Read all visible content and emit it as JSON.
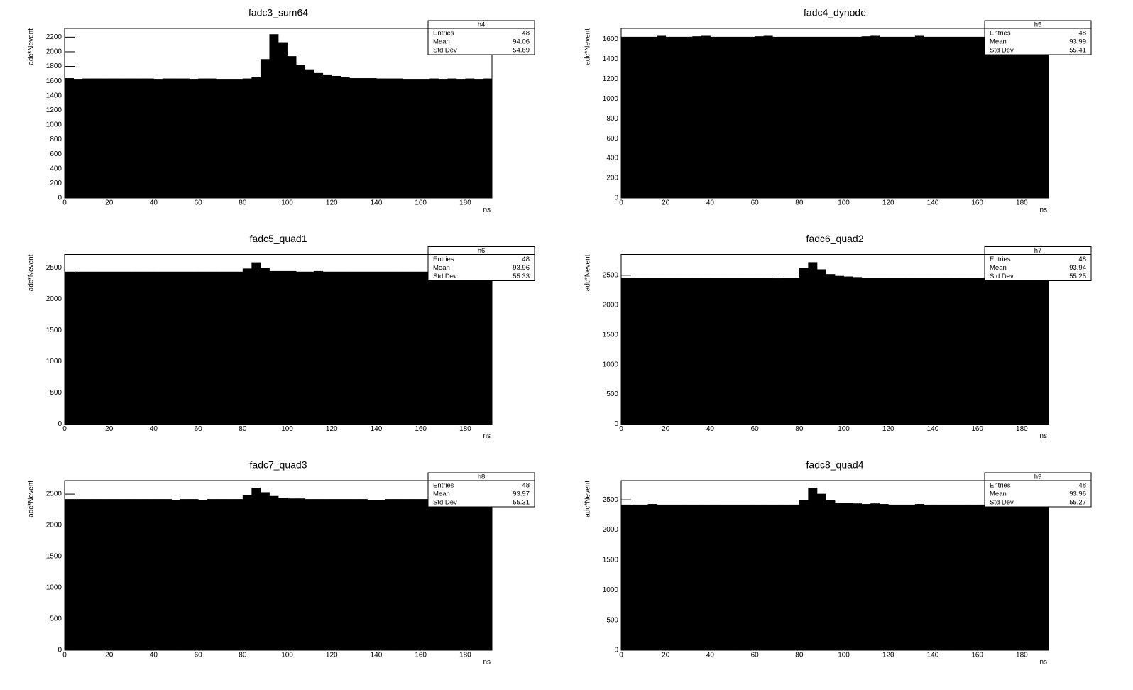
{
  "chart_data": [
    {
      "type": "histogram",
      "title": "fadc3_sum64",
      "xlabel": "ns",
      "ylabel": "adc*Nevent",
      "color": "#000000",
      "bins": [
        0,
        4,
        8,
        12,
        16,
        20,
        24,
        28,
        32,
        36,
        40,
        44,
        48,
        52,
        56,
        60,
        64,
        68,
        72,
        76,
        80,
        84,
        88,
        92,
        96,
        100,
        104,
        108,
        112,
        116,
        120,
        124,
        128,
        132,
        136,
        140,
        144,
        148,
        152,
        156,
        160,
        164,
        168,
        172,
        176,
        180,
        184,
        188,
        192
      ],
      "values": [
        1640,
        1630,
        1635,
        1635,
        1635,
        1635,
        1635,
        1635,
        1635,
        1635,
        1630,
        1635,
        1635,
        1635,
        1630,
        1635,
        1635,
        1630,
        1630,
        1630,
        1635,
        1650,
        1900,
        2240,
        2130,
        1940,
        1820,
        1760,
        1710,
        1690,
        1670,
        1650,
        1640,
        1640,
        1640,
        1635,
        1635,
        1635,
        1630,
        1630,
        1630,
        1635,
        1630,
        1635,
        1630,
        1635,
        1630,
        1635
      ],
      "xlim": [
        0,
        192
      ],
      "xticks": [
        0,
        20,
        40,
        60,
        80,
        100,
        120,
        140,
        160,
        180
      ],
      "ylim": [
        0,
        2320
      ],
      "yticks": [
        0,
        200,
        400,
        600,
        800,
        1000,
        1200,
        1400,
        1600,
        1800,
        2000,
        2200
      ],
      "stats": {
        "title": "h4",
        "rows": [
          {
            "label": "Entries",
            "value": 48
          },
          {
            "label": "Mean",
            "value": 94.06
          },
          {
            "label": "Std Dev",
            "value": 54.69
          }
        ]
      }
    },
    {
      "type": "histogram",
      "title": "fadc4_dynode",
      "xlabel": "ns",
      "ylabel": "adc*Nevent",
      "color": "#000000",
      "bins": [
        0,
        4,
        8,
        12,
        16,
        20,
        24,
        28,
        32,
        36,
        40,
        44,
        48,
        52,
        56,
        60,
        64,
        68,
        72,
        76,
        80,
        84,
        88,
        92,
        96,
        100,
        104,
        108,
        112,
        116,
        120,
        124,
        128,
        132,
        136,
        140,
        144,
        148,
        152,
        156,
        160,
        164,
        168,
        172,
        176,
        180,
        184,
        188,
        192
      ],
      "values": [
        1625,
        1625,
        1625,
        1625,
        1635,
        1625,
        1625,
        1625,
        1630,
        1635,
        1625,
        1625,
        1625,
        1625,
        1625,
        1630,
        1635,
        1625,
        1625,
        1625,
        1625,
        1625,
        1625,
        1625,
        1625,
        1625,
        1625,
        1630,
        1635,
        1625,
        1625,
        1625,
        1625,
        1635,
        1625,
        1625,
        1625,
        1625,
        1625,
        1625,
        1625,
        1625,
        1625,
        1625,
        1625,
        1625,
        1625,
        1625
      ],
      "xlim": [
        0,
        192
      ],
      "xticks": [
        0,
        20,
        40,
        60,
        80,
        100,
        120,
        140,
        160,
        180
      ],
      "ylim": [
        0,
        1710
      ],
      "yticks": [
        0,
        200,
        400,
        600,
        800,
        1000,
        1200,
        1400,
        1600
      ],
      "stats": {
        "title": "h5",
        "rows": [
          {
            "label": "Entries",
            "value": 48
          },
          {
            "label": "Mean",
            "value": 93.99
          },
          {
            "label": "Std Dev",
            "value": 55.41
          }
        ]
      }
    },
    {
      "type": "histogram",
      "title": "fadc5_quad1",
      "xlabel": "ns",
      "ylabel": "adc*Nevent",
      "color": "#000000",
      "bins": [
        0,
        4,
        8,
        12,
        16,
        20,
        24,
        28,
        32,
        36,
        40,
        44,
        48,
        52,
        56,
        60,
        64,
        68,
        72,
        76,
        80,
        84,
        88,
        92,
        96,
        100,
        104,
        108,
        112,
        116,
        120,
        124,
        128,
        132,
        136,
        140,
        144,
        148,
        152,
        156,
        160,
        164,
        168,
        172,
        176,
        180,
        184,
        188,
        192
      ],
      "values": [
        2440,
        2440,
        2440,
        2440,
        2440,
        2440,
        2440,
        2440,
        2440,
        2440,
        2440,
        2440,
        2440,
        2440,
        2440,
        2440,
        2440,
        2440,
        2440,
        2440,
        2490,
        2590,
        2500,
        2450,
        2450,
        2450,
        2440,
        2440,
        2450,
        2440,
        2440,
        2440,
        2440,
        2440,
        2440,
        2440,
        2440,
        2440,
        2440,
        2440,
        2440,
        2440,
        2440,
        2440,
        2440,
        2440,
        2440,
        2440
      ],
      "xlim": [
        0,
        192
      ],
      "xticks": [
        0,
        20,
        40,
        60,
        80,
        100,
        120,
        140,
        160,
        180
      ],
      "ylim": [
        0,
        2716
      ],
      "yticks": [
        0,
        500,
        1000,
        1500,
        2000,
        2500
      ],
      "stats": {
        "title": "h6",
        "rows": [
          {
            "label": "Entries",
            "value": 48
          },
          {
            "label": "Mean",
            "value": 93.96
          },
          {
            "label": "Std Dev",
            "value": 55.33
          }
        ]
      }
    },
    {
      "type": "histogram",
      "title": "fadc6_quad2",
      "xlabel": "ns",
      "ylabel": "adc*Nevent",
      "color": "#000000",
      "bins": [
        0,
        4,
        8,
        12,
        16,
        20,
        24,
        28,
        32,
        36,
        40,
        44,
        48,
        52,
        56,
        60,
        64,
        68,
        72,
        76,
        80,
        84,
        88,
        92,
        96,
        100,
        104,
        108,
        112,
        116,
        120,
        124,
        128,
        132,
        136,
        140,
        144,
        148,
        152,
        156,
        160,
        164,
        168,
        172,
        176,
        180,
        184,
        188,
        192
      ],
      "values": [
        2460,
        2460,
        2460,
        2460,
        2460,
        2460,
        2460,
        2460,
        2460,
        2460,
        2460,
        2460,
        2460,
        2460,
        2460,
        2460,
        2460,
        2450,
        2460,
        2460,
        2620,
        2720,
        2600,
        2520,
        2490,
        2480,
        2470,
        2460,
        2460,
        2460,
        2460,
        2460,
        2460,
        2460,
        2460,
        2460,
        2460,
        2460,
        2460,
        2460,
        2460,
        2460,
        2460,
        2460,
        2460,
        2460,
        2460,
        2460
      ],
      "xlim": [
        0,
        192
      ],
      "xticks": [
        0,
        20,
        40,
        60,
        80,
        100,
        120,
        140,
        160,
        180
      ],
      "ylim": [
        0,
        2850
      ],
      "yticks": [
        0,
        500,
        1000,
        1500,
        2000,
        2500
      ],
      "stats": {
        "title": "h7",
        "rows": [
          {
            "label": "Entries",
            "value": 48
          },
          {
            "label": "Mean",
            "value": 93.94
          },
          {
            "label": "Std Dev",
            "value": 55.25
          }
        ]
      }
    },
    {
      "type": "histogram",
      "title": "fadc7_quad3",
      "xlabel": "ns",
      "ylabel": "adc*Nevent",
      "color": "#000000",
      "bins": [
        0,
        4,
        8,
        12,
        16,
        20,
        24,
        28,
        32,
        36,
        40,
        44,
        48,
        52,
        56,
        60,
        64,
        68,
        72,
        76,
        80,
        84,
        88,
        92,
        96,
        100,
        104,
        108,
        112,
        116,
        120,
        124,
        128,
        132,
        136,
        140,
        144,
        148,
        152,
        156,
        160,
        164,
        168,
        172,
        176,
        180,
        184,
        188,
        192
      ],
      "values": [
        2420,
        2420,
        2420,
        2420,
        2420,
        2420,
        2420,
        2420,
        2420,
        2420,
        2420,
        2420,
        2410,
        2420,
        2420,
        2410,
        2420,
        2420,
        2420,
        2420,
        2480,
        2600,
        2530,
        2470,
        2440,
        2430,
        2430,
        2420,
        2420,
        2420,
        2420,
        2420,
        2420,
        2420,
        2410,
        2410,
        2420,
        2420,
        2420,
        2420,
        2420,
        2410,
        2420,
        2420,
        2420,
        2420,
        2420,
        2420
      ],
      "xlim": [
        0,
        192
      ],
      "xticks": [
        0,
        20,
        40,
        60,
        80,
        100,
        120,
        140,
        160,
        180
      ],
      "ylim": [
        0,
        2717
      ],
      "yticks": [
        0,
        500,
        1000,
        1500,
        2000,
        2500
      ],
      "stats": {
        "title": "h8",
        "rows": [
          {
            "label": "Entries",
            "value": 48
          },
          {
            "label": "Mean",
            "value": 93.97
          },
          {
            "label": "Std Dev",
            "value": 55.31
          }
        ]
      }
    },
    {
      "type": "histogram",
      "title": "fadc8_quad4",
      "xlabel": "ns",
      "ylabel": "adc*Nevent",
      "color": "#000000",
      "bins": [
        0,
        4,
        8,
        12,
        16,
        20,
        24,
        28,
        32,
        36,
        40,
        44,
        48,
        52,
        56,
        60,
        64,
        68,
        72,
        76,
        80,
        84,
        88,
        92,
        96,
        100,
        104,
        108,
        112,
        116,
        120,
        124,
        128,
        132,
        136,
        140,
        144,
        148,
        152,
        156,
        160,
        164,
        168,
        172,
        176,
        180,
        184,
        188,
        192
      ],
      "values": [
        2420,
        2420,
        2420,
        2430,
        2420,
        2420,
        2420,
        2420,
        2420,
        2420,
        2420,
        2420,
        2420,
        2420,
        2420,
        2420,
        2420,
        2420,
        2420,
        2420,
        2500,
        2700,
        2600,
        2490,
        2450,
        2450,
        2440,
        2430,
        2440,
        2430,
        2420,
        2420,
        2420,
        2430,
        2420,
        2420,
        2420,
        2420,
        2420,
        2420,
        2420,
        2420,
        2420,
        2420,
        2420,
        2420,
        2420,
        2420
      ],
      "xlim": [
        0,
        192
      ],
      "xticks": [
        0,
        20,
        40,
        60,
        80,
        100,
        120,
        140,
        160,
        180
      ],
      "ylim": [
        0,
        2820
      ],
      "yticks": [
        0,
        500,
        1000,
        1500,
        2000,
        2500
      ],
      "stats": {
        "title": "h9",
        "rows": [
          {
            "label": "Entries",
            "value": 48
          },
          {
            "label": "Mean",
            "value": 93.96
          },
          {
            "label": "Std Dev",
            "value": 55.27
          }
        ]
      }
    }
  ]
}
